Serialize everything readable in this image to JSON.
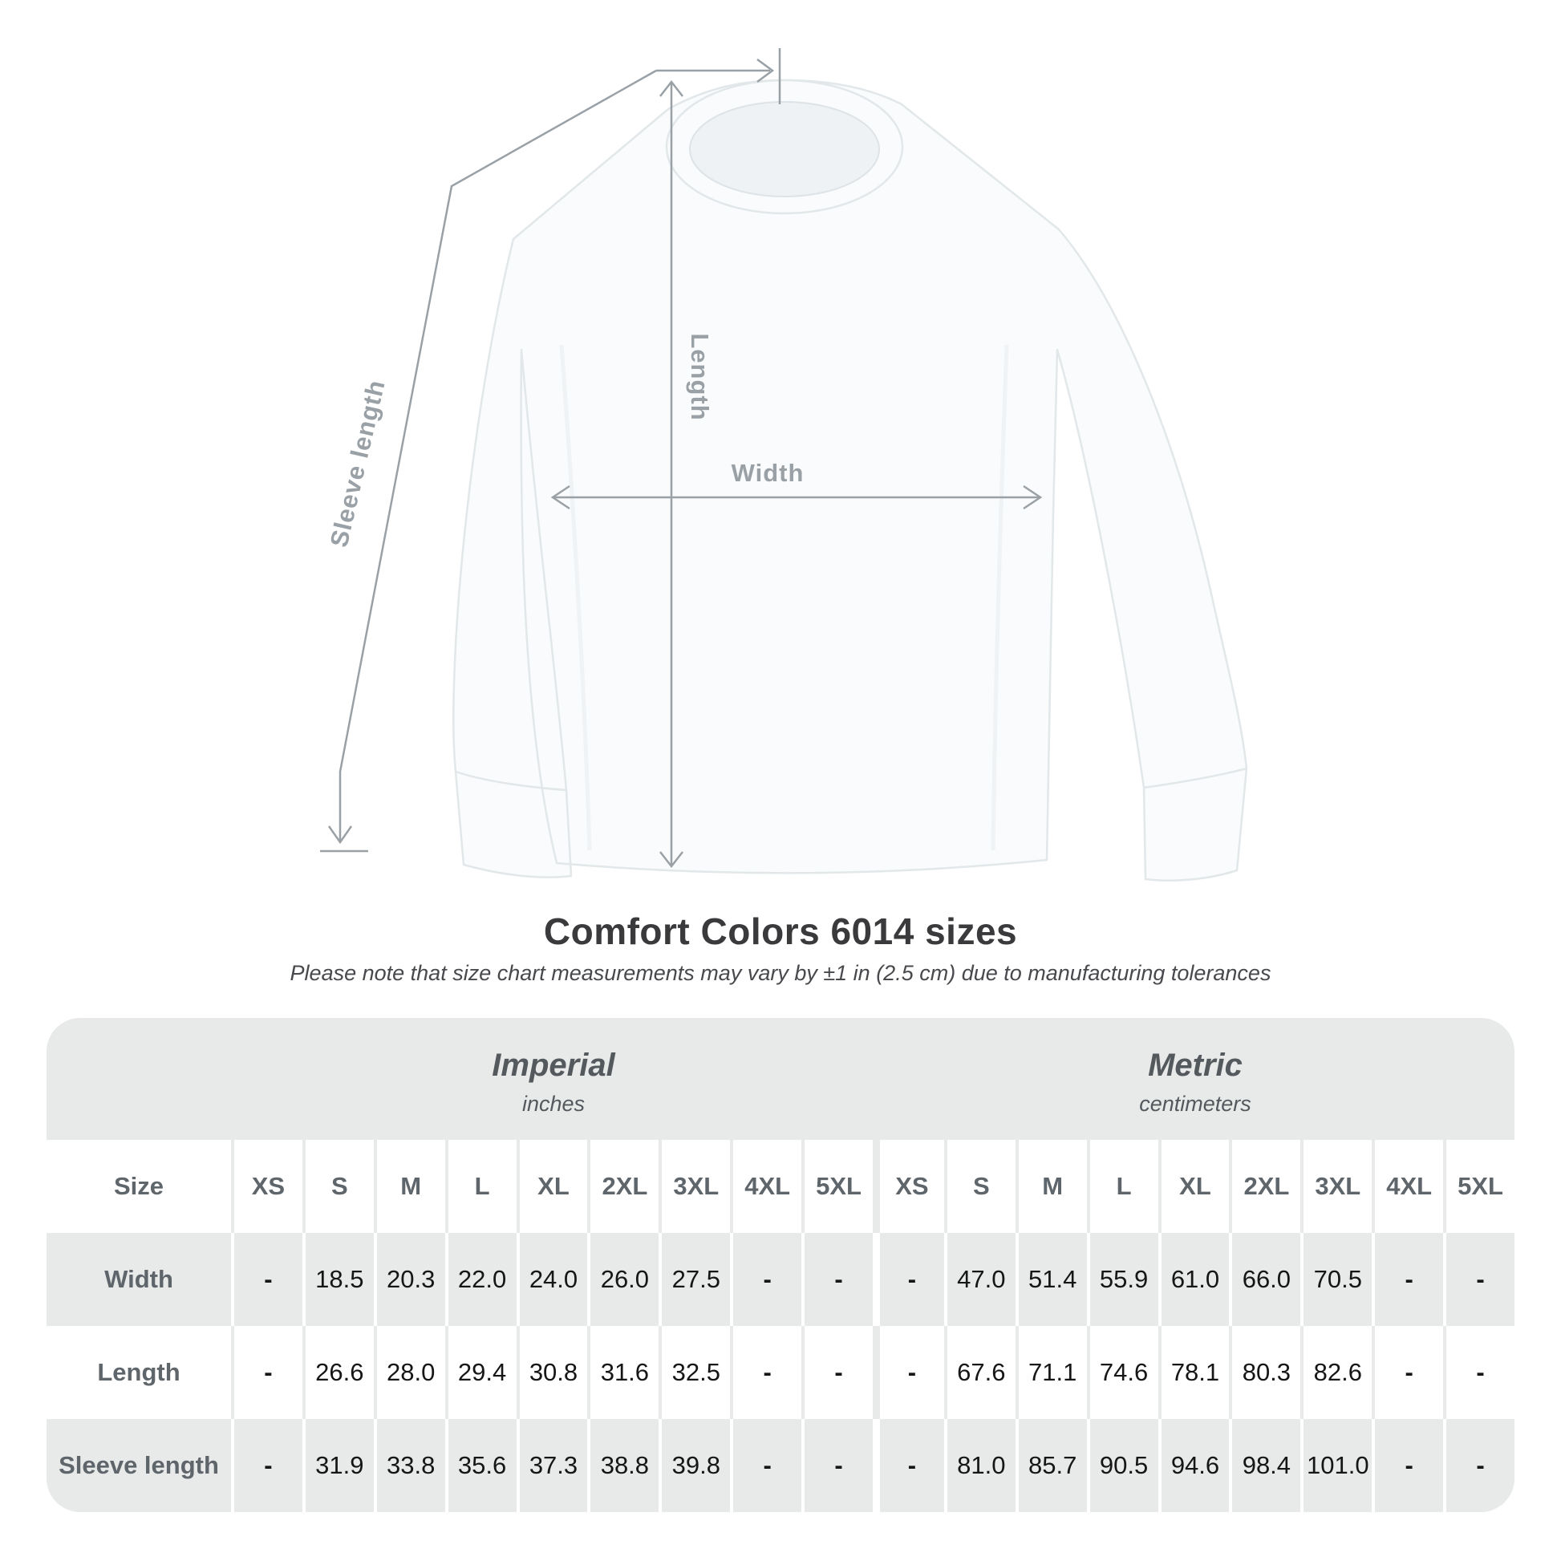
{
  "diagram": {
    "annotations": {
      "sleeve_length_label": "Sleeve length",
      "length_label": "Length",
      "width_label": "Width"
    },
    "line_color": "#9aa1a6"
  },
  "header": {
    "title": "Comfort Colors 6014 sizes",
    "subtitle": "Please note that size chart measurements may vary by ±1 in (2.5 cm) due to manufacturing tolerances"
  },
  "size_table": {
    "corner_label": "Size",
    "background_color": "#e8e9e9",
    "unit_groups": [
      {
        "name": "Imperial",
        "unit": "inches"
      },
      {
        "name": "Metric",
        "unit": "centimeters"
      }
    ],
    "sizes": [
      "XS",
      "S",
      "M",
      "L",
      "XL",
      "2XL",
      "3XL",
      "4XL",
      "5XL"
    ],
    "rows": [
      {
        "label": "Width",
        "imperial": [
          "-",
          "18.5",
          "20.3",
          "22.0",
          "24.0",
          "26.0",
          "27.5",
          "-",
          "-"
        ],
        "metric": [
          "-",
          "47.0",
          "51.4",
          "55.9",
          "61.0",
          "66.0",
          "70.5",
          "-",
          "-"
        ]
      },
      {
        "label": "Length",
        "imperial": [
          "-",
          "26.6",
          "28.0",
          "29.4",
          "30.8",
          "31.6",
          "32.5",
          "-",
          "-"
        ],
        "metric": [
          "-",
          "67.6",
          "71.1",
          "74.6",
          "78.1",
          "80.3",
          "82.6",
          "-",
          "-"
        ]
      },
      {
        "label": "Sleeve length",
        "imperial": [
          "-",
          "31.9",
          "33.8",
          "35.6",
          "37.3",
          "38.8",
          "39.8",
          "-",
          "-"
        ],
        "metric": [
          "-",
          "81.0",
          "85.7",
          "90.5",
          "94.6",
          "98.4",
          "101.0",
          "-",
          "-"
        ]
      }
    ]
  },
  "chart_data": {
    "type": "table",
    "title": "Comfort Colors 6014 sizes",
    "note": "Please note that size chart measurements may vary by ±1 in (2.5 cm) due to manufacturing tolerances",
    "columns": [
      "XS",
      "S",
      "M",
      "L",
      "XL",
      "2XL",
      "3XL",
      "4XL",
      "5XL"
    ],
    "imperial_inches": {
      "Width": [
        "-",
        "18.5",
        "20.3",
        "22.0",
        "24.0",
        "26.0",
        "27.5",
        "-",
        "-"
      ],
      "Length": [
        "-",
        "26.6",
        "28.0",
        "29.4",
        "30.8",
        "31.6",
        "32.5",
        "-",
        "-"
      ],
      "Sleeve length": [
        "-",
        "31.9",
        "33.8",
        "35.6",
        "37.3",
        "38.8",
        "39.8",
        "-",
        "-"
      ]
    },
    "metric_centimeters": {
      "Width": [
        "-",
        "47.0",
        "51.4",
        "55.9",
        "61.0",
        "66.0",
        "70.5",
        "-",
        "-"
      ],
      "Length": [
        "-",
        "67.6",
        "71.1",
        "74.6",
        "78.1",
        "80.3",
        "82.6",
        "-",
        "-"
      ],
      "Sleeve length": [
        "-",
        "81.0",
        "85.7",
        "90.5",
        "94.6",
        "98.4",
        "101.0",
        "-",
        "-"
      ]
    }
  }
}
